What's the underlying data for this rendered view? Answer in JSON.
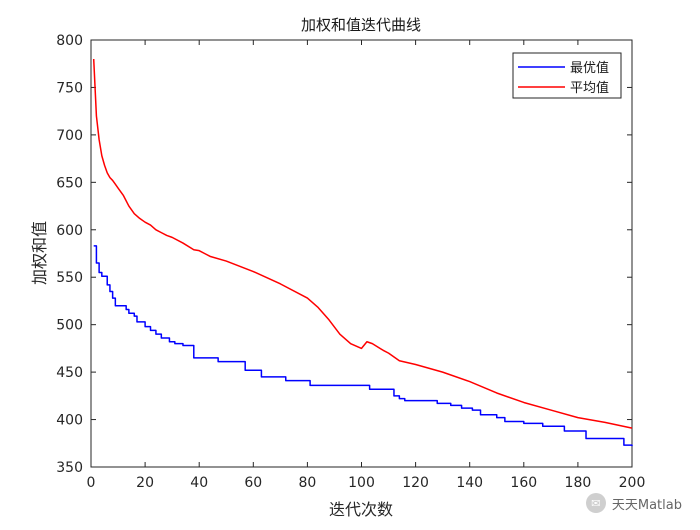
{
  "chart_data": {
    "type": "line",
    "title": "加权和值迭代曲线",
    "xlabel": "迭代次数",
    "ylabel": "加权和值",
    "xlim": [
      0,
      200
    ],
    "ylim": [
      350,
      800
    ],
    "xticks": [
      0,
      20,
      40,
      60,
      80,
      100,
      120,
      140,
      160,
      180,
      200
    ],
    "yticks": [
      350,
      400,
      450,
      500,
      550,
      600,
      650,
      700,
      750,
      800
    ],
    "grid": false,
    "legend_position": "top-right",
    "series": [
      {
        "name": "最优值",
        "color": "#0000ff",
        "style": "step",
        "x": [
          1,
          2,
          3,
          4,
          6,
          7,
          8,
          9,
          13,
          14,
          16,
          17,
          20,
          22,
          24,
          26,
          29,
          31,
          34,
          38,
          47,
          57,
          63,
          72,
          81,
          103,
          112,
          114,
          116,
          128,
          133,
          137,
          141,
          144,
          150,
          153,
          160,
          167,
          175,
          183,
          197,
          200
        ],
        "y": [
          583,
          565,
          555,
          551,
          542,
          535,
          528,
          520,
          516,
          512,
          509,
          503,
          498,
          494,
          490,
          486,
          482,
          480,
          478,
          465,
          461,
          452,
          445,
          441,
          436,
          432,
          425,
          422,
          420,
          417,
          415,
          412,
          410,
          405,
          402,
          398,
          396,
          393,
          388,
          380,
          373,
          372
        ]
      },
      {
        "name": "平均值",
        "color": "#ff0000",
        "style": "line",
        "x": [
          1,
          2,
          3,
          4,
          5,
          6,
          7,
          8,
          9,
          10,
          12,
          14,
          16,
          18,
          20,
          22,
          24,
          26,
          28,
          30,
          34,
          38,
          40,
          42,
          44,
          50,
          60,
          70,
          80,
          84,
          88,
          92,
          96,
          100,
          102,
          104,
          108,
          110,
          114,
          120,
          130,
          140,
          150,
          160,
          170,
          180,
          190,
          200
        ],
        "y": [
          780,
          720,
          695,
          678,
          668,
          660,
          655,
          652,
          648,
          644,
          636,
          625,
          617,
          612,
          608,
          605,
          600,
          597,
          594,
          592,
          586,
          579,
          578,
          575,
          572,
          567,
          556,
          543,
          528,
          518,
          505,
          490,
          480,
          475,
          482,
          480,
          473,
          470,
          462,
          458,
          450,
          440,
          428,
          418,
          410,
          402,
          397,
          391
        ]
      }
    ]
  },
  "watermark": {
    "text": "天天Matlab"
  }
}
